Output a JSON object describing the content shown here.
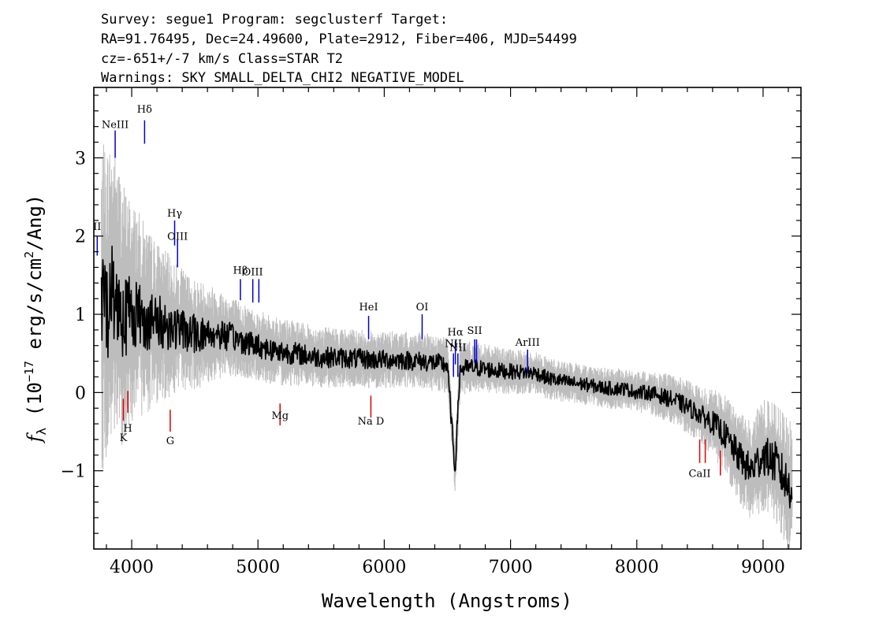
{
  "header": {
    "line1": "Survey: segue1 Program: segclusterf Target:",
    "line2": "RA=91.76495, Dec=24.49600, Plate=2912, Fiber=406, MJD=54499",
    "line3": "cz=-651+/-7 km/s Class=STAR T2",
    "line4": "Warnings: SKY SMALL_DELTA_CHI2 NEGATIVE_MODEL"
  },
  "chart_data": {
    "type": "line",
    "title": "",
    "xlabel": "Wavelength (Angstroms)",
    "ylabel": "f_λ (10^-17 erg/s/cm²/Ang)",
    "xlim": [
      3700,
      9300
    ],
    "ylim": [
      -2.0,
      3.9
    ],
    "x_ticks": [
      4000,
      5000,
      6000,
      7000,
      8000,
      9000
    ],
    "x_tick_labels": [
      "4000",
      "5000",
      "6000",
      "7000",
      "8000",
      "9000"
    ],
    "y_ticks": [
      -1,
      0,
      1,
      2,
      3
    ],
    "y_tick_labels": [
      "−1",
      "0",
      "1",
      "2",
      "3"
    ],
    "grid": false,
    "legend": "none",
    "series": [
      {
        "role": "flux-smoothed",
        "color": "#000000",
        "x": [
          3800,
          3850,
          3900,
          3950,
          4000,
          4050,
          4100,
          4150,
          4200,
          4300,
          4400,
          4500,
          4600,
          4700,
          4800,
          4900,
          5000,
          5100,
          5200,
          5300,
          5400,
          5500,
          5600,
          5700,
          5800,
          5900,
          6000,
          6100,
          6200,
          6300,
          6400,
          6500,
          6560,
          6600,
          6700,
          6800,
          6900,
          7000,
          7100,
          7200,
          7300,
          7400,
          7500,
          7600,
          7700,
          7800,
          7900,
          8000,
          8100,
          8200,
          8300,
          8400,
          8500,
          8600,
          8700,
          8800,
          8900,
          9000,
          9100,
          9200
        ],
        "y": [
          1.1,
          1.3,
          1.1,
          1.0,
          1.05,
          1.0,
          0.95,
          0.9,
          0.9,
          0.85,
          0.8,
          0.75,
          0.75,
          0.75,
          0.7,
          0.65,
          0.6,
          0.55,
          0.52,
          0.5,
          0.47,
          0.45,
          0.45,
          0.44,
          0.43,
          0.42,
          0.42,
          0.42,
          0.41,
          0.4,
          0.38,
          0.35,
          -1.0,
          0.3,
          0.32,
          0.3,
          0.28,
          0.27,
          0.26,
          0.25,
          0.18,
          0.15,
          0.12,
          0.1,
          0.07,
          0.05,
          0.05,
          0.0,
          0.0,
          -0.05,
          -0.1,
          -0.18,
          -0.28,
          -0.38,
          -0.55,
          -0.8,
          -1.0,
          -0.8,
          -0.9,
          -1.2
        ]
      },
      {
        "role": "flux-error-band",
        "color": "#bdbdbd",
        "x": [
          3800,
          3900,
          4000,
          4200,
          4400,
          4600,
          4800,
          5000,
          5500,
          6000,
          6500,
          7000,
          7500,
          8000,
          8500,
          8800,
          9000,
          9200
        ],
        "half_width": [
          1.6,
          1.4,
          1.1,
          0.8,
          0.6,
          0.5,
          0.4,
          0.35,
          0.3,
          0.28,
          0.28,
          0.22,
          0.2,
          0.2,
          0.28,
          0.45,
          0.55,
          0.65
        ]
      }
    ],
    "emission_lines": [
      {
        "label": "NeIII",
        "x": 3869,
        "y_top": 3.35,
        "y_bot": 3.0,
        "label_y": 3.38
      },
      {
        "label": "Hδ",
        "x": 4102,
        "y_top": 3.48,
        "y_bot": 3.18,
        "label_y": 3.58
      },
      {
        "label": "II",
        "x": 3727,
        "y_top": 2.0,
        "y_bot": 1.75,
        "label_y": 2.08
      },
      {
        "label": "Hγ",
        "x": 4340,
        "y_top": 2.2,
        "y_bot": 1.88,
        "label_y": 2.25
      },
      {
        "label": "OIII",
        "x": 4363,
        "y_top": 1.95,
        "y_bot": 1.6,
        "label_y": 1.95
      },
      {
        "label": "Hβ",
        "x": 4861,
        "y_top": 1.45,
        "y_bot": 1.18,
        "label_y": 1.52
      },
      {
        "label": "OIII",
        "x": 4959,
        "y_top": 1.45,
        "y_bot": 1.15,
        "label_y": 1.5
      },
      {
        "label": "",
        "x": 5007,
        "y_top": 1.45,
        "y_bot": 1.15,
        "label_y": 1.5
      },
      {
        "label": "HeI",
        "x": 5876,
        "y_top": 0.98,
        "y_bot": 0.68,
        "label_y": 1.05
      },
      {
        "label": "OI",
        "x": 6300,
        "y_top": 1.0,
        "y_bot": 0.68,
        "label_y": 1.05
      },
      {
        "label": "NII",
        "x": 6548,
        "y_top": 0.5,
        "y_bot": 0.2,
        "label_y": 0.58
      },
      {
        "label": "Hα",
        "x": 6563,
        "y_top": 0.66,
        "y_bot": 0.36,
        "label_y": 0.73
      },
      {
        "label": "NII",
        "x": 6583,
        "y_top": 0.5,
        "y_bot": 0.2,
        "label_y": 0.53
      },
      {
        "label": "SII",
        "x": 6716,
        "y_top": 0.68,
        "y_bot": 0.38,
        "label_y": 0.75
      },
      {
        "label": "",
        "x": 6731,
        "y_top": 0.68,
        "y_bot": 0.38,
        "label_y": 0.75
      },
      {
        "label": "ArIII",
        "x": 7135,
        "y_top": 0.55,
        "y_bot": 0.25,
        "label_y": 0.6
      }
    ],
    "absorption_lines": [
      {
        "label": "K",
        "x": 3934,
        "y_top": -0.08,
        "y_bot": -0.36,
        "label_y": -0.62
      },
      {
        "label": "H",
        "x": 3969,
        "y_top": 0.02,
        "y_bot": -0.26,
        "label_y": -0.5
      },
      {
        "label": "G",
        "x": 4305,
        "y_top": -0.22,
        "y_bot": -0.5,
        "label_y": -0.66
      },
      {
        "label": "Mg",
        "x": 5175,
        "y_top": -0.14,
        "y_bot": -0.42,
        "label_y": -0.34
      },
      {
        "label": "Na D",
        "x": 5894,
        "y_top": -0.04,
        "y_bot": -0.32,
        "label_y": -0.41
      },
      {
        "label": "CaII",
        "x": 8498,
        "y_top": -0.6,
        "y_bot": -0.9,
        "label_y": -1.08
      },
      {
        "label": "",
        "x": 8542,
        "y_top": -0.6,
        "y_bot": -0.9,
        "label_y": -1.08
      },
      {
        "label": "",
        "x": 8662,
        "y_top": -0.74,
        "y_bot": -1.06,
        "label_y": -1.08
      }
    ],
    "colors": {
      "flux": "#000000",
      "error_band": "#bdbdbd",
      "emission_marker": "#0000cc",
      "absorption_marker": "#dd0000",
      "axes": "#000000"
    }
  }
}
